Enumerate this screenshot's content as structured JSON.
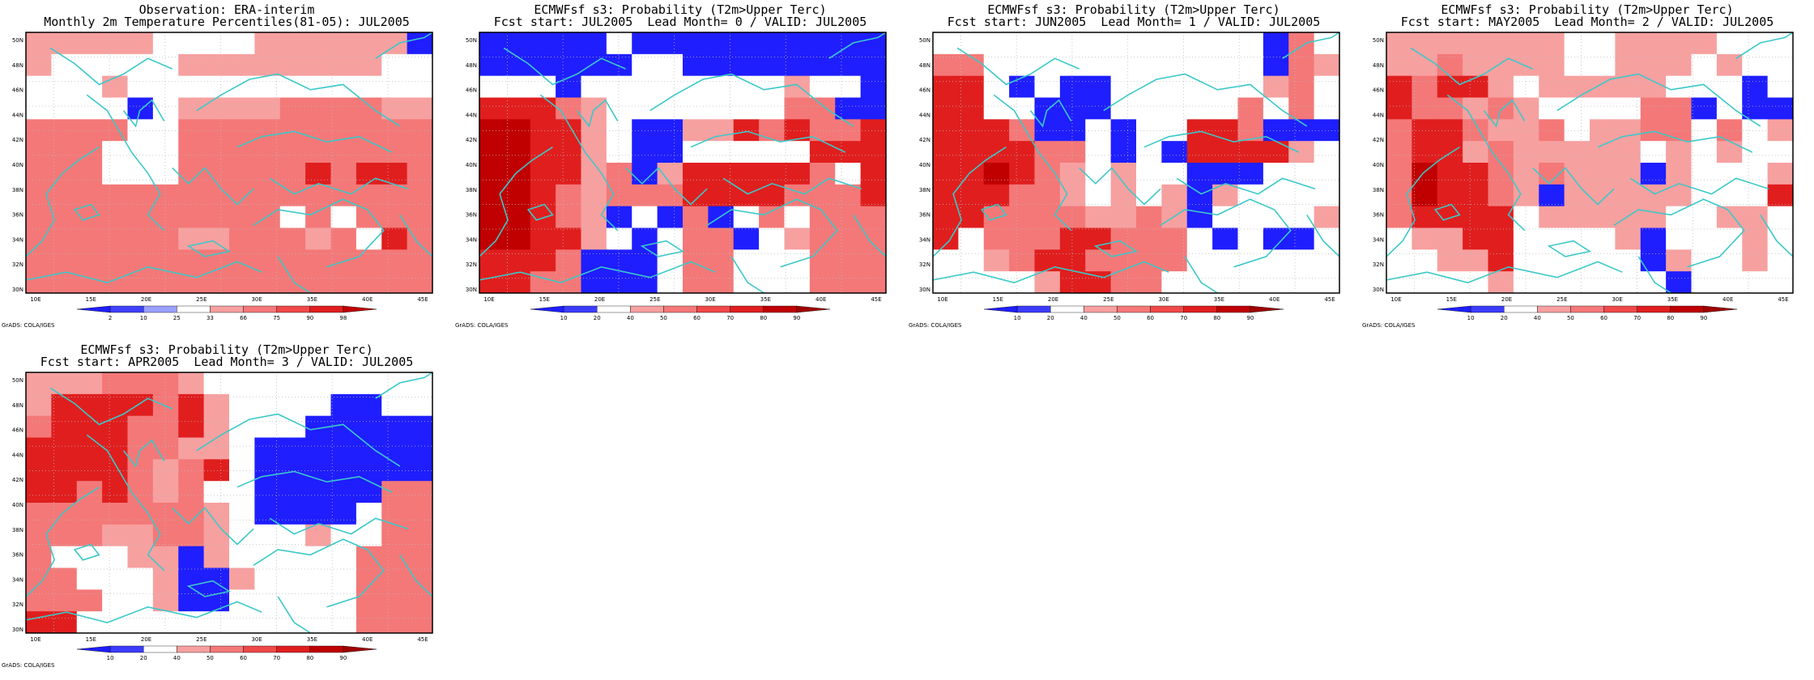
{
  "map_frame": {
    "lon_labels": [
      "10E",
      "15E",
      "20E",
      "25E",
      "30E",
      "35E",
      "40E",
      "45E"
    ],
    "lat_labels": [
      "50N",
      "48N",
      "46N",
      "44N",
      "42N",
      "40N",
      "38N",
      "36N",
      "34N",
      "32N",
      "30N"
    ],
    "grads_credit": "GrADS: COLA/IGES"
  },
  "colors": {
    "coast": "#3cc8c8",
    "blue": "#1e1eff",
    "blue_light": "#9aa0ff",
    "white": "#ffffff",
    "pink": "#f7a0a0",
    "salmon": "#f47878",
    "red_med": "#f04848",
    "red": "#e01e1e",
    "red_dark": "#c00000",
    "red_darkest": "#a00000"
  },
  "panels": [
    {
      "title_line1": "Observation: ERA-interim",
      "title_line2": "Monthly 2m Temperature Percentiles(81-05): JUL2005",
      "colorbar": {
        "labels": [
          "2",
          "10",
          "25",
          "33",
          "66",
          "75",
          "90",
          "98"
        ]
      },
      "grid": [
        "PPPPPWWWWPPPPPPB",
        "PWWWWWPPPPPPPPWW",
        "WWWPWWWWWWWWWWWW",
        "WWWWBWPPPPSSSSPP",
        "SSSSWWSSSSSSSSSS",
        "SSSWWWSSSSSSSSSS",
        "SSSWWWSSSSSRSRRS",
        "SSSSSSSSSSSSSSSS",
        "SSSSSSSSSSWSWSSS",
        "SSSSSSPPSSSPSWRS",
        "SSSSSSSSSSSSSSSS",
        "SSSSSSSSSSSSSSSS"
      ]
    },
    {
      "title_line1": "ECMWFsf s3: Probability (T2m>Upper Terc)",
      "title_line2": "Fcst start: JUL2005  Lead Month= 0 / VALID: JUL2005",
      "colorbar": {
        "labels": [
          "10",
          "20",
          "40",
          "50",
          "60",
          "70",
          "80",
          "90"
        ]
      },
      "grid": [
        "BBBBBWBBBBBBBBBB",
        "BBBBBBWWBBBBBBBB",
        "WWWBWWWWWWWWPWWB",
        "RRRSPWWWWWWWSSBB",
        "DDRRPWBBPPRSRSSR",
        "DDRRPWBBWWWWWRRR",
        "DDRRPSBPRRRRRSWR",
        "DDRSPSSSRRRRSSSR",
        "DDRSPBWBSBWSWSSS",
        "DDRRPWBWSSBWPSSS",
        "RRRSBBBWSSWWWSSS",
        "RRSSBBBWSSWWWSSS"
      ]
    },
    {
      "title_line1": "ECMWFsf s3: Probability (T2m>Upper Terc)",
      "title_line2": "Fcst start: JUN2005  Lead Month= 1 / VALID: JUL2005",
      "colorbar": {
        "labels": [
          "10",
          "20",
          "40",
          "50",
          "60",
          "70",
          "80",
          "90"
        ]
      },
      "grid": [
        "WWWWWWWWWWWWWBSW",
        "SSWWWWWWWWWWWBSP",
        "RRWBWBBWWWWWWPSW",
        "RRWWBBBWWWWWSWSW",
        "RRRSBBWBWWRRSBBB",
        "RRRRSSWBWBRRRRPW",
        "RRDRSPWPWWBBBWWW",
        "RRRSSPWPWPBPWWWW",
        "RRSSSSPPSPBWWWWP",
        "RWSSSRRSSSWBWBBW",
        "WWPSRRSSSSWWWWWW",
        "WWWWPRRSSWWWWWWW"
      ]
    },
    {
      "title_line1": "ECMWFsf s3: Probability (T2m>Upper Terc)",
      "title_line2": "Fcst start: MAY2005  Lead Month= 2 / VALID: JUL2005",
      "colorbar": {
        "labels": [
          "10",
          "20",
          "40",
          "50",
          "60",
          "70",
          "80",
          "90"
        ]
      },
      "grid": [
        "PPPPPPPWWPPPPWWW",
        "PPSPPPPWWPPPWPWW",
        "RSRRPWPPPPPWWWBW",
        "RSSPSPWWWWSSBWBB",
        "SRRSPPSWPPSSWSWP",
        "SRRPSPPPPPWPWPWW",
        "SDRRSPSPPPBPWWWP",
        "SDRRSPBPPPPPWWWR",
        "SRRRRWPPPPPWWPPW",
        "WPPRRWWWWPBWWWPW",
        "WWPPRWWWWWBPWWPW",
        "WWWWPWWWWWWBWWWW"
      ]
    },
    {
      "title_line1": "ECMWFsf s3: Probability (T2m>Upper Terc)",
      "title_line2": "Fcst start: APR2005  Lead Month= 3 / VALID: JUL2005",
      "colorbar": {
        "labels": [
          "10",
          "20",
          "40",
          "50",
          "60",
          "70",
          "80",
          "90"
        ]
      },
      "grid": [
        "PPPSSSPWWWWWWWWW",
        "PRRRRSRPWWWWBBWW",
        "SRRRSSRPWWWBBBBB",
        "RRRRSSPPWBBBBBBB",
        "RRRRSPSRWBBBBBBB",
        "RRSRSPSWWBBBBBSS",
        "SSSSSSSPWBBBBWSS",
        "SSSPPSSPWWWPWWSS",
        "SWWWPPBPWWWWWSSS",
        "SSWWWPBBPWWWWSSS",
        "SSSWWPBBWWWWWSSS",
        "RRWWWWWWWWWWWSSS"
      ]
    }
  ]
}
